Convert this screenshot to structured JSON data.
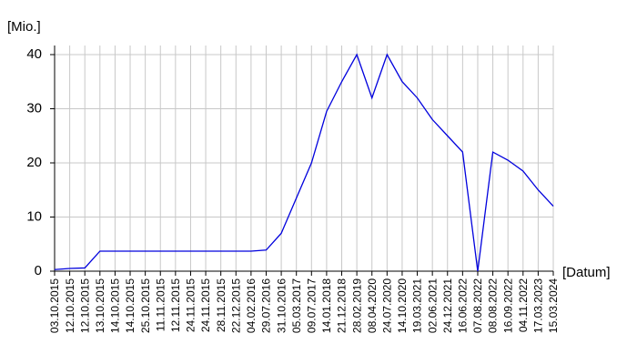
{
  "chart_data": {
    "type": "line",
    "y_label": "[Mio.]",
    "x_label": "[Datum]",
    "categories": [
      "03.10.2015",
      "12.10.2015",
      "12.10.2015",
      "13.10.2015",
      "14.10.2015",
      "14.10.2015",
      "25.10.2015",
      "11.11.2015",
      "12.11.2015",
      "24.11.2015",
      "24.11.2015",
      "28.11.2015",
      "22.12.2015",
      "04.02.2016",
      "29.07.2016",
      "31.10.2016",
      "05.03.2017",
      "09.07.2017",
      "14.01.2018",
      "21.12.2018",
      "28.02.2019",
      "08.04.2020",
      "24.07.2020",
      "14.10.2020",
      "19.03.2021",
      "02.06.2021",
      "24.12.2021",
      "16.06.2022",
      "07.08.2022",
      "08.08.2022",
      "16.09.2022",
      "04.11.2022",
      "17.03.2023",
      "15.03.2024"
    ],
    "values": [
      0.3,
      0.5,
      0.6,
      3.7,
      3.7,
      3.7,
      3.7,
      3.7,
      3.7,
      3.7,
      3.7,
      3.7,
      3.7,
      3.7,
      3.9,
      7,
      13.5,
      20,
      29.5,
      35,
      40,
      32,
      40,
      35,
      32,
      28,
      25,
      22,
      0,
      22,
      20.5,
      18.5,
      15,
      12
    ],
    "color": "#0000dd",
    "ylim": [
      0,
      40
    ],
    "yticks": [
      0,
      10,
      20,
      30,
      40
    ],
    "grid": true
  }
}
